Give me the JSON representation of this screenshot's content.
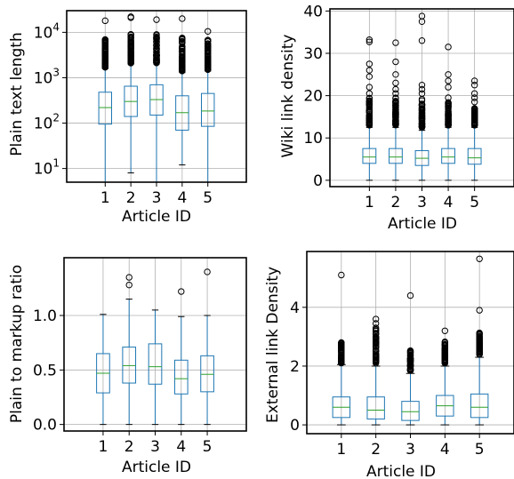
{
  "chart_data": [
    {
      "type": "box",
      "xlabel": "Article ID",
      "ylabel": "Plain text length",
      "yscale": "log",
      "ylim": [
        5,
        30000
      ],
      "yticks": [
        10,
        100,
        1000,
        10000
      ],
      "ytick_labels": [
        {
          "base": "10",
          "exp": "1"
        },
        {
          "base": "10",
          "exp": "2"
        },
        {
          "base": "10",
          "exp": "3"
        },
        {
          "base": "10",
          "exp": "4"
        }
      ],
      "categories": [
        "1",
        "2",
        "3",
        "4",
        "5"
      ],
      "grid": true,
      "boxes": [
        {
          "q1": 95,
          "median": 220,
          "q3": 480,
          "whisker_low": 5,
          "whisker_high": 1600,
          "outlier_min": 1700,
          "outlier_max": 7500,
          "fliers": [
            18000
          ]
        },
        {
          "q1": 140,
          "median": 300,
          "q3": 650,
          "whisker_low": 8,
          "whisker_high": 2000,
          "outlier_min": 2100,
          "outlier_max": 9000,
          "fliers": [
            21000,
            22000
          ]
        },
        {
          "q1": 150,
          "median": 330,
          "q3": 700,
          "whisker_low": 5,
          "whisker_high": 2000,
          "outlier_min": 2100,
          "outlier_max": 9000,
          "fliers": [
            19000
          ]
        },
        {
          "q1": 70,
          "median": 170,
          "q3": 400,
          "whisker_low": 12,
          "whisker_high": 1300,
          "outlier_min": 1400,
          "outlier_max": 8000,
          "fliers": [
            20000
          ]
        },
        {
          "q1": 85,
          "median": 185,
          "q3": 450,
          "whisker_low": 5,
          "whisker_high": 1400,
          "outlier_min": 1500,
          "outlier_max": 7000,
          "fliers": [
            10500
          ]
        }
      ]
    },
    {
      "type": "box",
      "xlabel": "Article ID",
      "ylabel": "Wiki link density",
      "yscale": "linear",
      "ylim": [
        -1.5,
        40.5
      ],
      "yticks": [
        0,
        10,
        20,
        30,
        40
      ],
      "ytick_labels": [
        "0",
        "10",
        "20",
        "30",
        "40"
      ],
      "categories": [
        "1",
        "2",
        "3",
        "4",
        "5"
      ],
      "grid": true,
      "boxes": [
        {
          "q1": 4.0,
          "median": 5.5,
          "q3": 7.5,
          "whisker_low": 0,
          "whisker_high": 12.5,
          "outlier_min": 13,
          "outlier_max": 19.5,
          "fliers": [
            20.5,
            22,
            24.5,
            26,
            27.5,
            32.7,
            33.2
          ]
        },
        {
          "q1": 4.0,
          "median": 5.5,
          "q3": 7.5,
          "whisker_low": 0,
          "whisker_high": 12.5,
          "outlier_min": 13,
          "outlier_max": 19.5,
          "fliers": [
            20.5,
            21.5,
            23,
            25,
            28,
            32.5
          ]
        },
        {
          "q1": 3.5,
          "median": 5.2,
          "q3": 7.0,
          "whisker_low": 0,
          "whisker_high": 11.8,
          "outlier_min": 12.5,
          "outlier_max": 19.5,
          "fliers": [
            20.5,
            21.5,
            22.5,
            33,
            37.5,
            38.8
          ]
        },
        {
          "q1": 4.0,
          "median": 5.5,
          "q3": 7.5,
          "whisker_low": 0,
          "whisker_high": 12.5,
          "outlier_min": 13,
          "outlier_max": 18.5,
          "fliers": [
            19.5,
            22,
            23.5,
            25,
            31.5
          ]
        },
        {
          "q1": 3.8,
          "median": 5.3,
          "q3": 7.5,
          "whisker_low": 0,
          "whisker_high": 12.5,
          "outlier_min": 13,
          "outlier_max": 17,
          "fliers": [
            18.5,
            19.5,
            20.5,
            22.5,
            23.5
          ]
        }
      ]
    },
    {
      "type": "box",
      "xlabel": "Article ID",
      "ylabel": "Plain to markup ratio",
      "yscale": "linear",
      "ylim": [
        -0.06,
        1.53
      ],
      "yticks": [
        0.0,
        0.5,
        1.0
      ],
      "ytick_labels": [
        "0.0",
        "0.5",
        "1.0"
      ],
      "categories": [
        "1",
        "2",
        "3",
        "4",
        "5"
      ],
      "grid": true,
      "boxes": [
        {
          "q1": 0.29,
          "median": 0.47,
          "q3": 0.65,
          "whisker_low": 0.0,
          "whisker_high": 1.01,
          "fliers": []
        },
        {
          "q1": 0.38,
          "median": 0.54,
          "q3": 0.71,
          "whisker_low": 0.0,
          "whisker_high": 1.15,
          "fliers": [
            1.28,
            1.35
          ]
        },
        {
          "q1": 0.37,
          "median": 0.53,
          "q3": 0.74,
          "whisker_low": 0.0,
          "whisker_high": 1.05,
          "fliers": []
        },
        {
          "q1": 0.28,
          "median": 0.42,
          "q3": 0.59,
          "whisker_low": 0.0,
          "whisker_high": 0.99,
          "fliers": [
            1.22
          ]
        },
        {
          "q1": 0.3,
          "median": 0.46,
          "q3": 0.63,
          "whisker_low": 0.0,
          "whisker_high": 1.0,
          "fliers": [
            1.4
          ]
        }
      ]
    },
    {
      "type": "box",
      "xlabel": "Article ID",
      "ylabel": "External link Density",
      "yscale": "linear",
      "ylim": [
        -0.3,
        5.9
      ],
      "yticks": [
        0,
        2,
        4
      ],
      "ytick_labels": [
        "0",
        "2",
        "4"
      ],
      "categories": [
        "1",
        "2",
        "3",
        "4",
        "5"
      ],
      "grid": true,
      "boxes": [
        {
          "q1": 0.25,
          "median": 0.6,
          "q3": 0.95,
          "whisker_low": 0,
          "whisker_high": 2.05,
          "outlier_min": 2.1,
          "outlier_max": 2.8,
          "fliers": [
            5.1
          ]
        },
        {
          "q1": 0.2,
          "median": 0.5,
          "q3": 0.95,
          "whisker_low": 0,
          "whisker_high": 2.0,
          "outlier_min": 2.1,
          "outlier_max": 3.3,
          "fliers": [
            3.45,
            3.6
          ]
        },
        {
          "q1": 0.15,
          "median": 0.45,
          "q3": 0.8,
          "whisker_low": 0,
          "whisker_high": 1.75,
          "outlier_min": 1.85,
          "outlier_max": 2.55,
          "fliers": [
            4.4
          ]
        },
        {
          "q1": 0.3,
          "median": 0.65,
          "q3": 1.0,
          "whisker_low": 0,
          "whisker_high": 2.0,
          "outlier_min": 2.1,
          "outlier_max": 2.85,
          "fliers": [
            3.2
          ]
        },
        {
          "q1": 0.25,
          "median": 0.6,
          "q3": 1.05,
          "whisker_low": 0,
          "whisker_high": 2.3,
          "outlier_min": 2.4,
          "outlier_max": 3.15,
          "fliers": [
            3.9,
            5.65
          ]
        }
      ]
    }
  ],
  "colors": {
    "box": "#1f77b4",
    "median": "#2ca02c",
    "grid": "#b0b0b0",
    "axis": "#000000",
    "flier": "#000000"
  }
}
